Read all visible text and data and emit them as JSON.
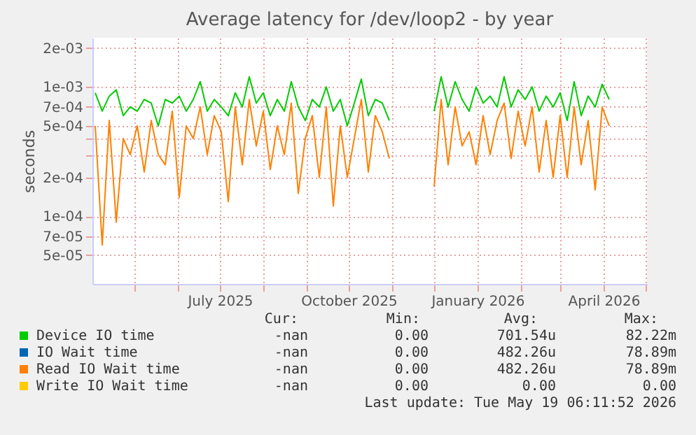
{
  "chart_data": {
    "type": "line",
    "title": "Average latency for /dev/loop2 - by year",
    "ylabel": "seconds",
    "x": [
      "2025-04-03",
      "2025-04-08",
      "2025-04-13",
      "2025-04-18",
      "2025-04-23",
      "2025-04-28",
      "2025-05-03",
      "2025-05-08",
      "2025-05-13",
      "2025-05-18",
      "2025-05-23",
      "2025-05-28",
      "2025-06-02",
      "2025-06-07",
      "2025-06-12",
      "2025-06-17",
      "2025-06-22",
      "2025-06-27",
      "2025-07-02",
      "2025-07-07",
      "2025-07-12",
      "2025-07-17",
      "2025-07-22",
      "2025-07-27",
      "2025-08-01",
      "2025-08-06",
      "2025-08-11",
      "2025-08-16",
      "2025-08-21",
      "2025-08-26",
      "2025-08-31",
      "2025-09-05",
      "2025-09-10",
      "2025-09-15",
      "2025-09-20",
      "2025-09-25",
      "2025-09-30",
      "2025-10-05",
      "2025-10-10",
      "2025-10-15",
      "2025-10-20",
      "2025-10-25",
      "2025-10-30",
      "2025-11-15",
      "2025-12-01",
      "2025-12-06",
      "2025-12-11",
      "2025-12-16",
      "2025-12-21",
      "2025-12-26",
      "2025-12-31",
      "2026-01-05",
      "2026-01-10",
      "2026-01-15",
      "2026-01-20",
      "2026-01-25",
      "2026-01-30",
      "2026-02-04",
      "2026-02-09",
      "2026-02-14",
      "2026-02-19",
      "2026-02-24",
      "2026-03-01",
      "2026-03-06",
      "2026-03-11",
      "2026-03-16",
      "2026-03-21",
      "2026-03-26",
      "2026-03-31",
      "2026-04-05"
    ],
    "series": [
      {
        "name": "Device IO time",
        "color": "#00cc00",
        "values": [
          0.0009,
          0.00065,
          0.00085,
          0.00095,
          0.0006,
          0.0007,
          0.00065,
          0.0008,
          0.00075,
          0.0005,
          0.0008,
          0.00075,
          0.00085,
          0.00065,
          0.0008,
          0.0011,
          0.00065,
          0.0008,
          0.0007,
          0.0006,
          0.0009,
          0.0007,
          0.0012,
          0.00075,
          0.0009,
          0.0006,
          0.0008,
          0.00065,
          0.0011,
          0.0007,
          0.00055,
          0.0008,
          0.0007,
          0.001,
          0.00065,
          0.0008,
          0.0005,
          0.00075,
          0.00115,
          0.0006,
          0.0008,
          0.00075,
          0.00055,
          null,
          0.00065,
          0.0012,
          0.0007,
          0.0011,
          0.0008,
          0.00065,
          0.001,
          0.00075,
          0.00085,
          0.0007,
          0.0012,
          0.0007,
          0.00095,
          0.0008,
          0.001,
          0.00065,
          0.00085,
          0.0007,
          0.0009,
          0.00055,
          0.0011,
          0.0006,
          0.00085,
          0.0007,
          0.00105,
          0.0008
        ]
      },
      {
        "name": "IO Wait time",
        "color": "#0066b3",
        "values": [
          null,
          null,
          null,
          null,
          null,
          null,
          null,
          null,
          null,
          null,
          null,
          null,
          null,
          null,
          null,
          null,
          null,
          null,
          null,
          null,
          null,
          null,
          null,
          null,
          null,
          null,
          null,
          null,
          null,
          null,
          null,
          null,
          null,
          null,
          null,
          null,
          null,
          null,
          null,
          null,
          null,
          null,
          null,
          null,
          null,
          null,
          null,
          null,
          null,
          null,
          null,
          null,
          null,
          null,
          null,
          null,
          null,
          null,
          null,
          null,
          null,
          null,
          null,
          null,
          null,
          null,
          null,
          null,
          null,
          null
        ]
      },
      {
        "name": "Read IO Wait time",
        "color": "#ff8000",
        "values": [
          0.0005,
          6e-05,
          0.00055,
          9e-05,
          0.0004,
          0.0003,
          0.0005,
          0.00022,
          0.00055,
          0.0003,
          0.00025,
          0.00065,
          0.00014,
          0.0005,
          0.0004,
          0.0007,
          0.0003,
          0.0006,
          0.00045,
          0.00013,
          0.0007,
          0.00025,
          0.0008,
          0.00035,
          0.00065,
          0.00023,
          0.0005,
          0.0003,
          0.00075,
          0.00015,
          0.0004,
          0.0006,
          0.0002,
          0.0007,
          0.00012,
          0.0005,
          0.0002,
          0.0004,
          0.0008,
          0.00022,
          0.0006,
          0.00045,
          0.00028,
          null,
          0.00017,
          0.0008,
          0.00025,
          0.0007,
          0.00035,
          0.00045,
          0.00025,
          0.0006,
          0.0003,
          0.00055,
          0.00075,
          0.00028,
          0.00065,
          0.00035,
          0.0007,
          0.00022,
          0.00055,
          0.0002,
          0.0006,
          0.0002,
          0.0007,
          0.00025,
          0.00055,
          0.00016,
          0.0007,
          0.0005
        ]
      },
      {
        "name": "Write IO Wait time",
        "color": "#ffcc00",
        "values": [
          null,
          null,
          null,
          null,
          null,
          null,
          null,
          null,
          null,
          null,
          null,
          null,
          null,
          null,
          null,
          null,
          null,
          null,
          null,
          null,
          null,
          null,
          null,
          null,
          null,
          null,
          null,
          null,
          null,
          null,
          null,
          null,
          null,
          null,
          null,
          null,
          null,
          null,
          null,
          null,
          null,
          null,
          null,
          null,
          null,
          null,
          null,
          null,
          null,
          null,
          null,
          null,
          null,
          null,
          null,
          null,
          null,
          null,
          null,
          null,
          null,
          null,
          null,
          null,
          null,
          null,
          null,
          null,
          null,
          null
        ]
      }
    ],
    "log": true,
    "ylim": [
      3e-05,
      0.0024
    ],
    "yticks": [
      {
        "value": 5e-05,
        "label": "5e-05"
      },
      {
        "value": 7e-05,
        "label": "7e-05"
      },
      {
        "value": 0.0001,
        "label": "1e-04"
      },
      {
        "value": 0.0002,
        "label": "2e-04"
      },
      {
        "value": 0.0003,
        "label": null
      },
      {
        "value": 0.0004,
        "label": null
      },
      {
        "value": 0.0005,
        "label": "5e-04"
      },
      {
        "value": 0.0007,
        "label": "7e-04"
      },
      {
        "value": 0.001,
        "label": "1e-03"
      },
      {
        "value": 0.002,
        "label": "2e-03"
      }
    ],
    "xlim": [
      "2025-04-01",
      "2026-05-02"
    ],
    "xticks": [
      {
        "value": "2025-05-01",
        "label": null
      },
      {
        "value": "2025-06-01",
        "label": null
      },
      {
        "value": "2025-07-01",
        "label": "July 2025"
      },
      {
        "value": "2025-08-01",
        "label": null
      },
      {
        "value": "2025-09-01",
        "label": null
      },
      {
        "value": "2025-10-01",
        "label": "October 2025"
      },
      {
        "value": "2025-11-01",
        "label": null
      },
      {
        "value": "2025-12-01",
        "label": null
      },
      {
        "value": "2026-01-01",
        "label": "January 2026"
      },
      {
        "value": "2026-02-01",
        "label": null
      },
      {
        "value": "2026-03-01",
        "label": null
      },
      {
        "value": "2026-04-01",
        "label": "April 2026"
      },
      {
        "value": "2026-05-01",
        "label": null
      }
    ],
    "grid": true,
    "legend": "bottom",
    "line_style": "solid",
    "marker": "none",
    "annotations": [
      "Cur:",
      "Min:",
      "Avg:",
      "Max:",
      "-nan",
      "0.00",
      "701.54u",
      "82.22m",
      "-nan",
      "0.00",
      "482.26u",
      "78.89m",
      "-nan",
      "0.00",
      "482.26u",
      "78.89m",
      "-nan",
      "0.00",
      "0.00",
      "0.00",
      "Last update: Tue May 19 06:11:52 2026"
    ]
  }
}
